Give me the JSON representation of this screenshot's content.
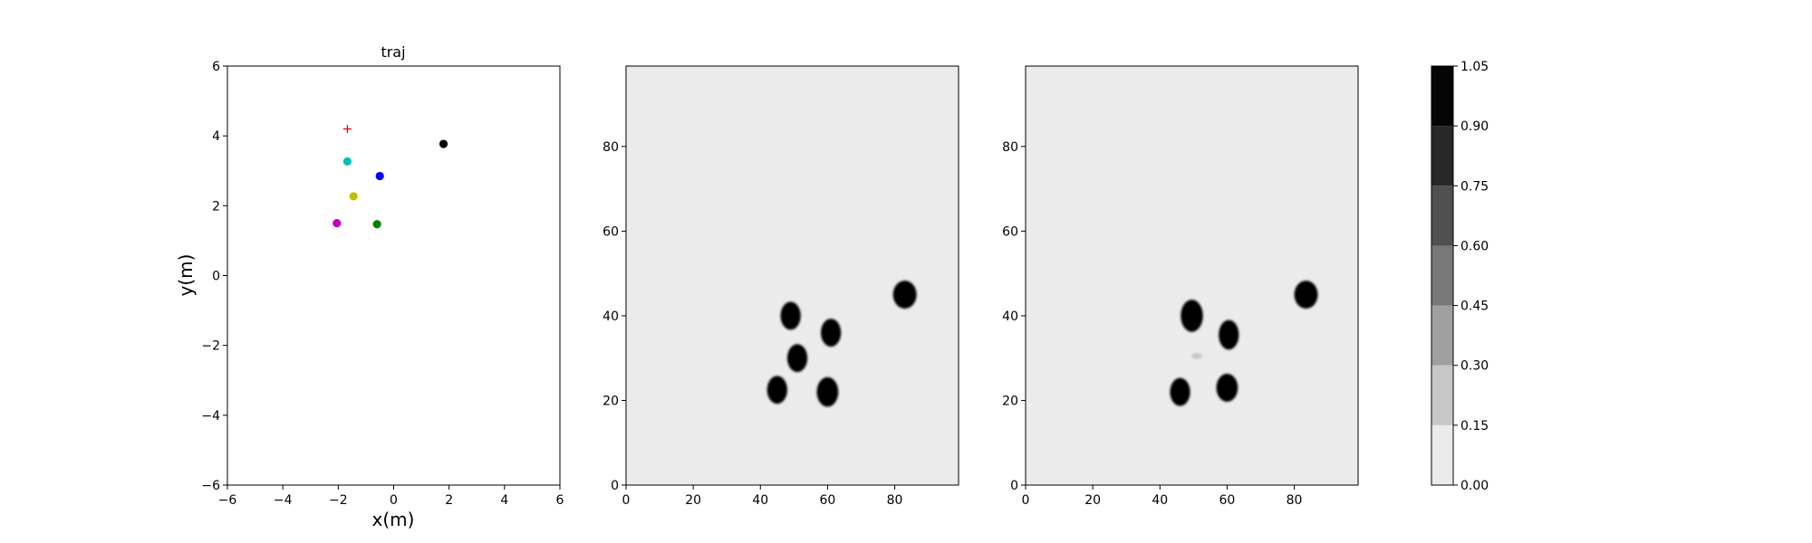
{
  "chart_data": [
    {
      "type": "scatter",
      "title": "traj",
      "xlabel": "x(m)",
      "ylabel": "y(m)",
      "xlim": [
        -6,
        6
      ],
      "ylim": [
        -6,
        6
      ],
      "xticks": [
        -6,
        -4,
        -2,
        0,
        2,
        4,
        6
      ],
      "yticks": [
        -6,
        -4,
        -2,
        0,
        2,
        4,
        6
      ],
      "grid": false,
      "points": [
        {
          "x": -1.67,
          "y": 4.2,
          "color": "#ff0000",
          "marker": "plus"
        },
        {
          "x": 1.8,
          "y": 3.77,
          "color": "#000000",
          "marker": "circle"
        },
        {
          "x": -1.67,
          "y": 3.27,
          "color": "#00bfbf",
          "marker": "circle"
        },
        {
          "x": -0.5,
          "y": 2.85,
          "color": "#0000ff",
          "marker": "circle"
        },
        {
          "x": -1.45,
          "y": 2.27,
          "color": "#bfbf00",
          "marker": "circle"
        },
        {
          "x": -2.05,
          "y": 1.5,
          "color": "#bf00bf",
          "marker": "circle"
        },
        {
          "x": -0.6,
          "y": 1.47,
          "color": "#008000",
          "marker": "circle"
        }
      ]
    },
    {
      "type": "heatmap",
      "xlim": [
        0,
        99
      ],
      "ylim": [
        0,
        99
      ],
      "xticks": [
        0,
        20,
        40,
        60,
        80
      ],
      "yticks": [
        0,
        20,
        40,
        60,
        80
      ],
      "background_level": 0.0,
      "blobs": [
        {
          "x": 49,
          "y": 40,
          "rx": 3,
          "ry": 3.3,
          "level": 1.05
        },
        {
          "x": 61,
          "y": 36,
          "rx": 3,
          "ry": 3.3,
          "level": 1.05
        },
        {
          "x": 51,
          "y": 30,
          "rx": 3,
          "ry": 3.3,
          "level": 1.05
        },
        {
          "x": 45,
          "y": 22.5,
          "rx": 3,
          "ry": 3.3,
          "level": 1.05
        },
        {
          "x": 60,
          "y": 22,
          "rx": 3.2,
          "ry": 3.5,
          "level": 1.05
        },
        {
          "x": 83,
          "y": 45,
          "rx": 3.5,
          "ry": 3.3,
          "level": 1.05
        }
      ]
    },
    {
      "type": "heatmap",
      "xlim": [
        0,
        99
      ],
      "ylim": [
        0,
        99
      ],
      "xticks": [
        0,
        20,
        40,
        60,
        80
      ],
      "yticks": [
        0,
        20,
        40,
        60,
        80
      ],
      "background_level": 0.0,
      "blobs": [
        {
          "x": 49.5,
          "y": 40,
          "rx": 3.3,
          "ry": 3.8,
          "level": 1.05
        },
        {
          "x": 60.5,
          "y": 35.5,
          "rx": 3,
          "ry": 3.5,
          "level": 1.05
        },
        {
          "x": 51,
          "y": 30.5,
          "rx": 1.6,
          "ry": 0.7,
          "level": 0.3
        },
        {
          "x": 46,
          "y": 22,
          "rx": 3,
          "ry": 3.3,
          "level": 1.05
        },
        {
          "x": 60,
          "y": 23,
          "rx": 3.2,
          "ry": 3.3,
          "level": 1.05
        },
        {
          "x": 83.5,
          "y": 45,
          "rx": 3.5,
          "ry": 3.3,
          "level": 1.05
        }
      ]
    }
  ],
  "colorbar": {
    "levels": [
      0.0,
      0.15,
      0.3,
      0.45,
      0.6,
      0.75,
      0.9,
      1.05
    ],
    "tick_labels": [
      "0.00",
      "0.15",
      "0.30",
      "0.45",
      "0.60",
      "0.75",
      "0.90",
      "1.05"
    ],
    "colors": [
      "#ebebeb",
      "#c8c8c8",
      "#a0a0a0",
      "#787878",
      "#505050",
      "#282828",
      "#050505"
    ]
  }
}
